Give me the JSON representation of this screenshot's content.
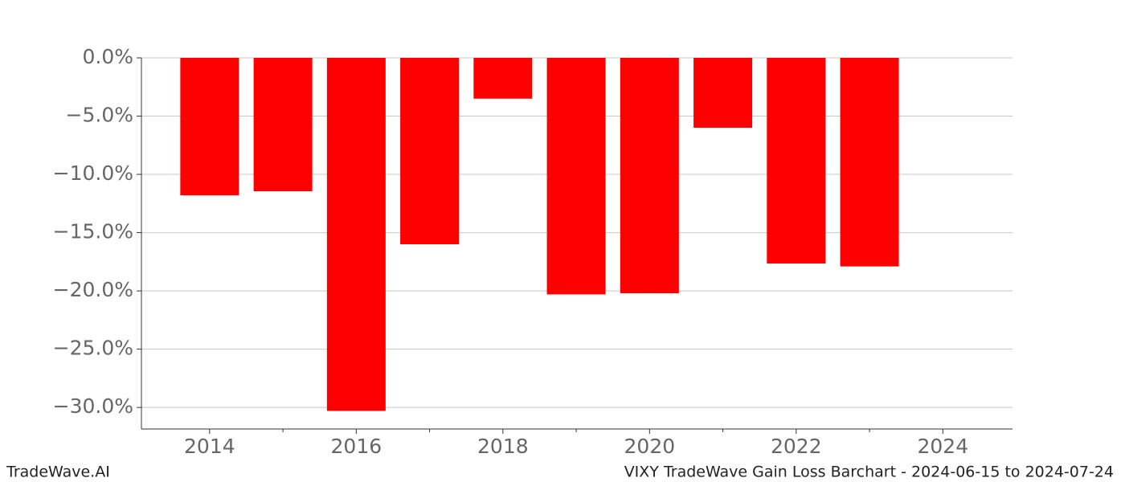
{
  "chart_data": {
    "type": "bar",
    "title": "VIXY TradeWave Gain Loss Barchart - 2024-06-15 to 2024-07-24",
    "brand": "TradeWave.AI",
    "x": [
      2014,
      2015,
      2016,
      2017,
      2018,
      2019,
      2020,
      2021,
      2022,
      2023
    ],
    "values": [
      -11.8,
      -11.45,
      -30.3,
      -16.0,
      -3.5,
      -20.3,
      -20.2,
      -6.0,
      -17.65,
      -17.9
    ],
    "color": "#ff0000",
    "xlim": [
      2013.07,
      2024.95
    ],
    "xticks": [
      2014,
      2016,
      2018,
      2020,
      2022,
      2024
    ],
    "xminorticks": [
      2015,
      2017,
      2019,
      2021,
      2023
    ],
    "ylim": [
      -31.85,
      0
    ],
    "yticks": [
      {
        "value": 0,
        "label": "0.0%"
      },
      {
        "value": -5,
        "label": "−5.0%"
      },
      {
        "value": -10,
        "label": "−10.0%"
      },
      {
        "value": -15,
        "label": "−15.0%"
      },
      {
        "value": -20,
        "label": "−20.0%"
      },
      {
        "value": -25,
        "label": "−25.0%"
      },
      {
        "value": -30,
        "label": "−30.0%"
      }
    ],
    "grid": true
  }
}
